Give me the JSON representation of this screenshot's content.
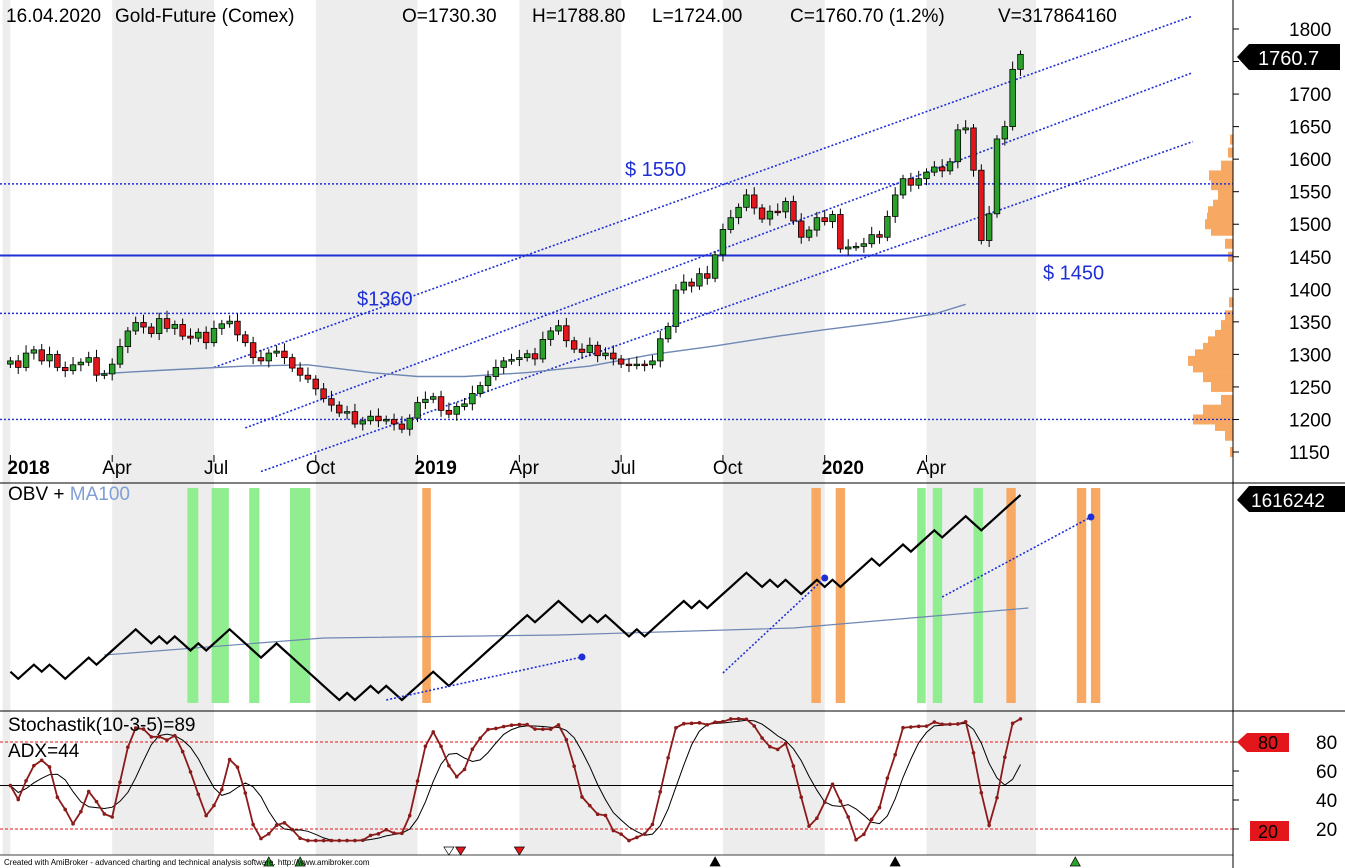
{
  "header": {
    "date": "16.04.2020",
    "instrument": "Gold-Future (Comex)",
    "open": "O=1730.30",
    "high": "H=1788.80",
    "low": "L=1724.00",
    "close": "C=1760.70 (1.2%)",
    "volume": "V=317864160"
  },
  "footer": {
    "credit": "Created with AmiBroker - advanced charting and technical analysis software. http://www.amibroker.com"
  },
  "colors": {
    "up": "#2ca02c",
    "down": "#e3161b",
    "channel": "#1f2fd6",
    "ma": "#6f87b3",
    "stoch": "#8b1a1a",
    "volume_profile": "#f7a963",
    "green_band": "#90ee90",
    "orange_band": "#f7a963",
    "shade": "#ededed"
  },
  "chart_data": [
    {
      "type": "candlestick",
      "panel": "price",
      "x_labels": [
        "2018",
        "Apr",
        "Jul",
        "Oct",
        "2019",
        "Apr",
        "Jul",
        "Oct",
        "2020",
        "Apr"
      ],
      "x_label_weeks": [
        0,
        13,
        26,
        39,
        52,
        65,
        78,
        91,
        104,
        117
      ],
      "y_ticks": [
        1150,
        1200,
        1250,
        1300,
        1350,
        1400,
        1450,
        1500,
        1550,
        1600,
        1650,
        1700,
        1750,
        1800
      ],
      "ylim": [
        1125,
        1812
      ],
      "last_price_label": "1760.7",
      "levels": [
        {
          "label": "$ 1550",
          "value": 1562,
          "style": "dotted"
        },
        {
          "label": "$ 1450",
          "value": 1452,
          "style": "solid"
        },
        {
          "label": "$1360",
          "value": 1363,
          "style": "dotted"
        },
        {
          "label": "",
          "value": 1200,
          "style": "dotted"
        }
      ],
      "weekly_closes": [
        1290,
        1280,
        1302,
        1307,
        1290,
        1300,
        1280,
        1275,
        1284,
        1288,
        1295,
        1268,
        1270,
        1285,
        1312,
        1336,
        1349,
        1342,
        1332,
        1355,
        1340,
        1346,
        1328,
        1325,
        1334,
        1318,
        1340,
        1347,
        1351,
        1330,
        1318,
        1295,
        1290,
        1302,
        1305,
        1295,
        1279,
        1268,
        1262,
        1247,
        1232,
        1222,
        1210,
        1212,
        1193,
        1198,
        1205,
        1198,
        1200,
        1193,
        1185,
        1202,
        1226,
        1231,
        1235,
        1214,
        1208,
        1220,
        1224,
        1240,
        1252,
        1266,
        1280,
        1290,
        1292,
        1295,
        1301,
        1293,
        1323,
        1336,
        1344,
        1321,
        1308,
        1303,
        1314,
        1298,
        1302,
        1293,
        1285,
        1283,
        1285,
        1284,
        1290,
        1324,
        1343,
        1399,
        1411,
        1405,
        1424,
        1417,
        1453,
        1492,
        1510,
        1526,
        1545,
        1525,
        1508,
        1520,
        1519,
        1535,
        1505,
        1480,
        1491,
        1510,
        1504,
        1515,
        1462,
        1465,
        1466,
        1470,
        1484,
        1480,
        1512,
        1545,
        1570,
        1560,
        1570,
        1580,
        1588,
        1582,
        1596,
        1645,
        1648,
        1583,
        1475,
        1516,
        1631,
        1650,
        1738,
        1761
      ],
      "channel_lines": [
        {
          "from": [
            26,
            1280
          ],
          "to": [
            151,
            1820
          ]
        },
        {
          "from": [
            30,
            1187
          ],
          "to": [
            151,
            1733
          ]
        },
        {
          "from": [
            32,
            1120
          ],
          "to": [
            151,
            1627
          ]
        }
      ],
      "ma_label": "MA100"
    },
    {
      "type": "line",
      "panel": "obv",
      "title": "OBV + MA100",
      "last_value_label": "1616242",
      "green_bands_weeks": [
        [
          22.6,
          24.0
        ],
        [
          25.7,
          27.9
        ],
        [
          30.5,
          31.8
        ],
        [
          35.7,
          38.3
        ],
        [
          115.8,
          116.9
        ],
        [
          117.8,
          119.0
        ],
        [
          123.0,
          124.2
        ]
      ],
      "orange_bands_weeks": [
        [
          52.6,
          53.7
        ],
        [
          102.3,
          103.5
        ],
        [
          105.4,
          106.6
        ],
        [
          127.2,
          128.4
        ],
        [
          136.2,
          137.4
        ],
        [
          138.0,
          139.2
        ]
      ]
    },
    {
      "type": "line",
      "panel": "stochastic",
      "title": "Stochastik(10-3-5)=89",
      "subtitle": "ADX=44",
      "y_ticks": [
        20,
        40,
        60,
        80
      ],
      "ylim": [
        10,
        100
      ],
      "levels": [
        80,
        50,
        20
      ],
      "tag_high": "80",
      "tag_low": "20"
    }
  ]
}
